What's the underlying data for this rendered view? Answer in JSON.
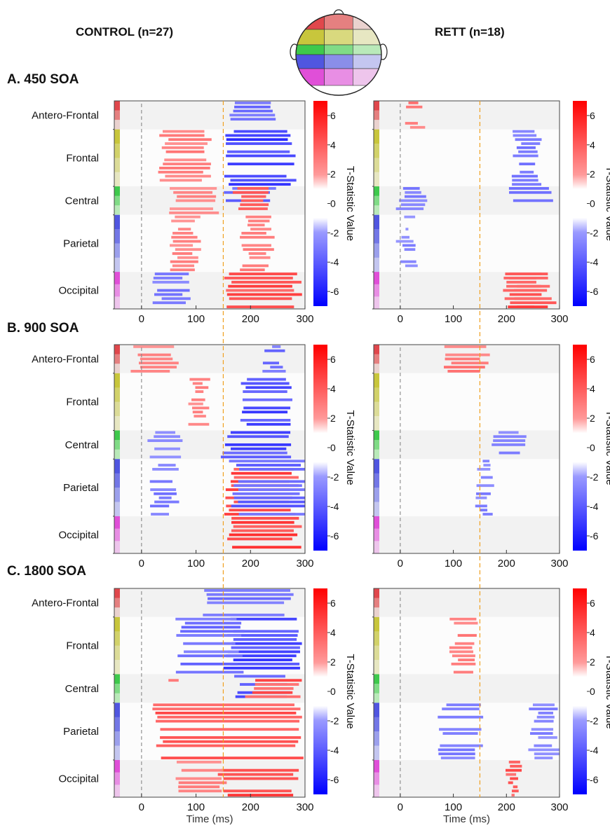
{
  "header": {
    "left_group": "CONTROL (n=27)",
    "right_group": "RETT (n=18)"
  },
  "head_map": {
    "region_colors": [
      [
        "#e0474c",
        "#e58080",
        "#ead2cf"
      ],
      [
        "#c8c63c",
        "#d9d97e",
        "#e7e7c2"
      ],
      [
        "#3ec94c",
        "#80db86",
        "#b9e9b9"
      ],
      [
        "#5056e0",
        "#8a8ee9",
        "#c4c6f0"
      ],
      [
        "#e04fd8",
        "#e88ee4",
        "#eec5ec"
      ]
    ]
  },
  "regions": [
    {
      "name": "Antero-Frontal",
      "colors": [
        "#e0474c",
        "#e58080",
        "#ead2cf"
      ]
    },
    {
      "name": "Frontal",
      "colors": [
        "#c8c63c",
        "#d2d26a",
        "#dcdc98",
        "#e7e7c2"
      ]
    },
    {
      "name": "Central",
      "colors": [
        "#3ec94c",
        "#80db86",
        "#b9e9b9"
      ]
    },
    {
      "name": "Parietal",
      "colors": [
        "#5056e0",
        "#7377e6",
        "#9ca0ec",
        "#c4c6f0"
      ]
    },
    {
      "name": "Occipital",
      "colors": [
        "#e04fd8",
        "#e88ee4",
        "#eec5ec"
      ]
    }
  ],
  "panels": [
    {
      "label": "A.  450 SOA",
      "soa": 450
    },
    {
      "label": "B.  900 SOA",
      "soa": 900
    },
    {
      "label": "C.  1800 SOA",
      "soa": 1800
    }
  ],
  "colorbar": {
    "label": "T-Statistic Value",
    "ticks": [
      "6",
      "4",
      "2",
      "0",
      "-2",
      "-4",
      "-6"
    ],
    "range": [
      -7,
      7
    ],
    "threshold": 2
  },
  "axes": {
    "x_ticks": [
      "0",
      "100",
      "200",
      "300"
    ],
    "xlabel": "Time (ms)"
  },
  "chart_data": {
    "type": "heatmap",
    "x_range": [
      -50,
      300
    ],
    "stimulus_onset_ms": 0,
    "reference_line_ms": 150,
    "colors": {
      "positive": "#ff0000",
      "negative": "#0000ff",
      "onset_line": "#888888",
      "reference_line": "#f0a020"
    },
    "maps": [
      {
        "panel": "450 SOA",
        "group": "CONTROL",
        "clusters": [
          {
            "region": "Antero-Frontal",
            "t0": 170,
            "t1": 245,
            "t": -3.5
          },
          {
            "region": "Frontal",
            "t0": 160,
            "t1": 275,
            "t": -5.5
          },
          {
            "region": "Frontal",
            "t0": 40,
            "t1": 120,
            "t": 2.8
          },
          {
            "region": "Central",
            "t0": 160,
            "t1": 240,
            "t": -4
          },
          {
            "region": "Central",
            "t0": 60,
            "t1": 140,
            "t": 2.4
          },
          {
            "region": "Central",
            "t0": 175,
            "t1": 225,
            "t": 4.5
          },
          {
            "region": "Parietal",
            "t0": 190,
            "t1": 235,
            "t": 3
          },
          {
            "region": "Parietal",
            "t0": 60,
            "t1": 100,
            "t": 2.5
          },
          {
            "region": "Occipital",
            "t0": 160,
            "t1": 285,
            "t": 5
          },
          {
            "region": "Occipital",
            "t0": 30,
            "t1": 85,
            "t": -3
          }
        ]
      },
      {
        "panel": "450 SOA",
        "group": "RETT",
        "clusters": [
          {
            "region": "Antero-Frontal",
            "t0": 18,
            "t1": 38,
            "t": 3
          },
          {
            "region": "Frontal",
            "t0": 220,
            "t1": 260,
            "t": -3.2
          },
          {
            "region": "Central",
            "t0": 0,
            "t1": 45,
            "t": -2.8
          },
          {
            "region": "Central",
            "t0": 210,
            "t1": 290,
            "t": -3
          },
          {
            "region": "Parietal",
            "t0": 0,
            "t1": 25,
            "t": -2.5
          },
          {
            "region": "Occipital",
            "t0": 210,
            "t1": 260,
            "t": 4.5
          },
          {
            "region": "Occipital",
            "t0": 200,
            "t1": 285,
            "t": 5
          }
        ]
      },
      {
        "panel": "900 SOA",
        "group": "CONTROL",
        "clusters": [
          {
            "region": "Antero-Frontal",
            "t0": -10,
            "t1": 60,
            "t": 2.5
          },
          {
            "region": "Antero-Frontal",
            "t0": 230,
            "t1": 260,
            "t": -3.5
          },
          {
            "region": "Frontal",
            "t0": 190,
            "t1": 275,
            "t": -5
          },
          {
            "region": "Frontal",
            "t0": 90,
            "t1": 120,
            "t": 2.5
          },
          {
            "region": "Central",
            "t0": 155,
            "t1": 275,
            "t": -5
          },
          {
            "region": "Central",
            "t0": 20,
            "t1": 70,
            "t": -2.5
          },
          {
            "region": "Parietal",
            "t0": 160,
            "t1": 280,
            "t": 5
          },
          {
            "region": "Parietal",
            "t0": 170,
            "t1": 300,
            "t": -4
          },
          {
            "region": "Parietal",
            "t0": 25,
            "t1": 60,
            "t": -3
          },
          {
            "region": "Occipital",
            "t0": 160,
            "t1": 285,
            "t": 5.5
          }
        ]
      },
      {
        "panel": "900 SOA",
        "group": "RETT",
        "clusters": [
          {
            "region": "Antero-Frontal",
            "t0": 90,
            "t1": 160,
            "t": 3
          },
          {
            "region": "Central",
            "t0": 180,
            "t1": 230,
            "t": -2.5
          },
          {
            "region": "Parietal",
            "t0": 150,
            "t1": 170,
            "t": -2.6
          }
        ]
      },
      {
        "panel": "1800 SOA",
        "group": "CONTROL",
        "clusters": [
          {
            "region": "Antero-Frontal",
            "t0": 120,
            "t1": 270,
            "t": -3.5
          },
          {
            "region": "Frontal",
            "t0": 160,
            "t1": 285,
            "t": -5.5
          },
          {
            "region": "Frontal",
            "t0": 70,
            "t1": 180,
            "t": -3.5
          },
          {
            "region": "Central",
            "t0": 180,
            "t1": 270,
            "t": -5
          },
          {
            "region": "Central",
            "t0": 40,
            "t1": 75,
            "t": 3
          },
          {
            "region": "Central",
            "t0": 200,
            "t1": 285,
            "t": 4.5
          },
          {
            "region": "Parietal",
            "t0": 30,
            "t1": 290,
            "t": 4.5
          },
          {
            "region": "Occipital",
            "t0": 150,
            "t1": 280,
            "t": 5.5
          },
          {
            "region": "Occipital",
            "t0": 70,
            "t1": 150,
            "t": 2.5
          }
        ]
      },
      {
        "panel": "1800 SOA",
        "group": "RETT",
        "clusters": [
          {
            "region": "Frontal",
            "t0": 100,
            "t1": 140,
            "t": 3
          },
          {
            "region": "Parietal",
            "t0": 250,
            "t1": 295,
            "t": -2.6
          },
          {
            "region": "Parietal",
            "t0": 80,
            "t1": 150,
            "t": -3
          },
          {
            "region": "Occipital",
            "t0": 205,
            "t1": 220,
            "t": 4.5
          }
        ]
      }
    ]
  }
}
